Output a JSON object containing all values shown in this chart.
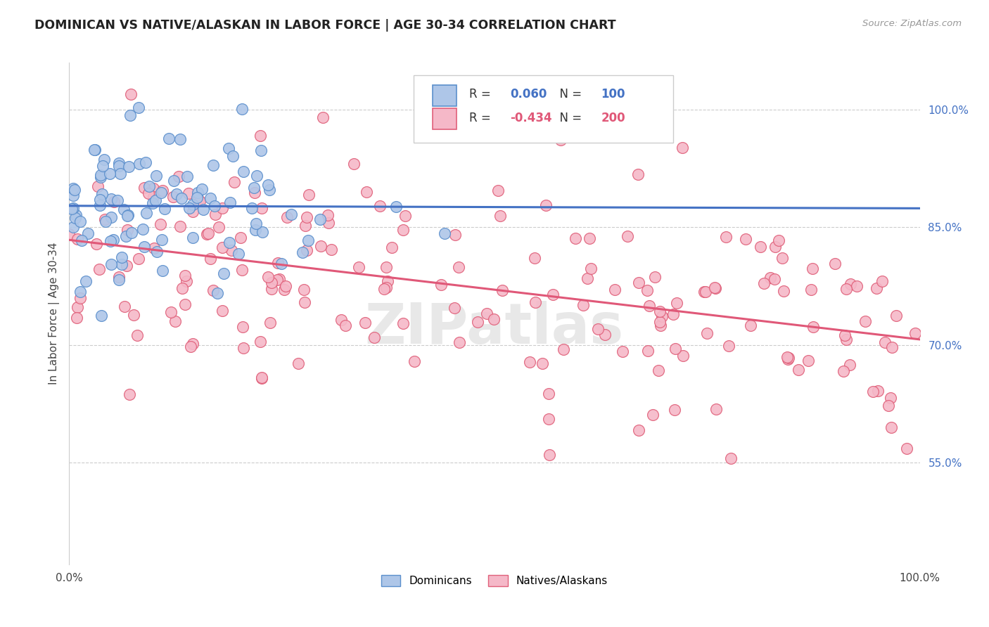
{
  "title": "DOMINICAN VS NATIVE/ALASKAN IN LABOR FORCE | AGE 30-34 CORRELATION CHART",
  "source": "Source: ZipAtlas.com",
  "ylabel": "In Labor Force | Age 30-34",
  "legend_entries": [
    "Dominicans",
    "Natives/Alaskans"
  ],
  "r_blue": 0.06,
  "n_blue": 100,
  "r_pink": -0.434,
  "n_pink": 200,
  "blue_fill": "#aec6e8",
  "pink_fill": "#f5b8c8",
  "blue_edge": "#5b8fcc",
  "pink_edge": "#e0607a",
  "blue_line": "#4472c4",
  "pink_line": "#e05878",
  "watermark": "ZIPatlas",
  "xmin": 0.0,
  "xmax": 1.0,
  "ymin": 0.42,
  "ymax": 1.06,
  "yticks": [
    0.55,
    0.7,
    0.85,
    1.0
  ],
  "ytick_labels": [
    "55.0%",
    "70.0%",
    "85.0%",
    "100.0%"
  ],
  "blue_seed": 7,
  "pink_seed": 13
}
